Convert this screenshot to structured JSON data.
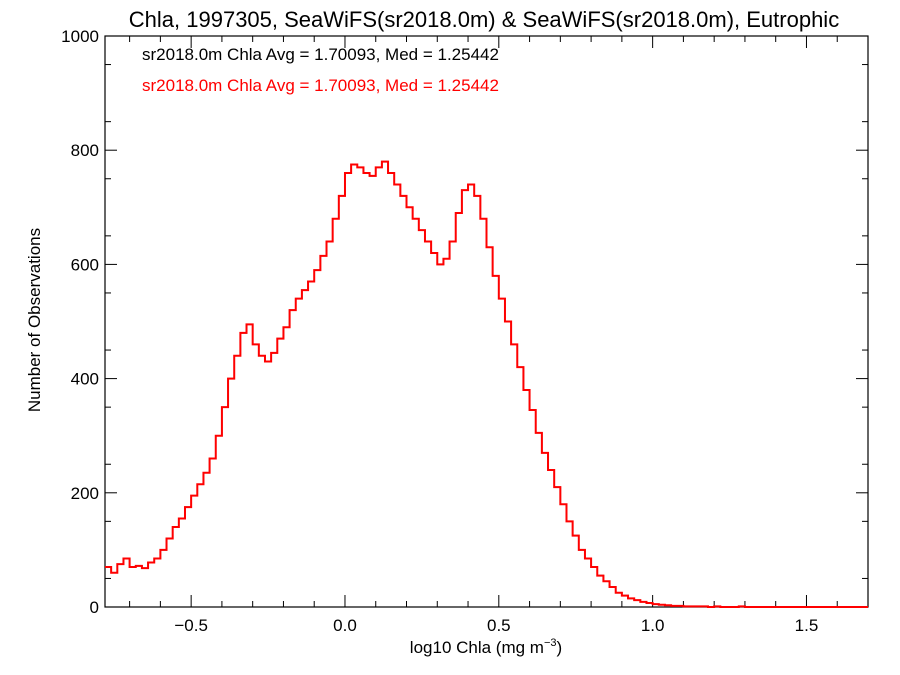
{
  "chart_data": {
    "type": "histogram",
    "title": "Chla, 1997305, SeaWiFS(sr2018.0m) & SeaWiFS(sr2018.0m), Eutrophic",
    "xlabel_main": "log10 Chla (mg m",
    "xlabel_sup": "−3",
    "xlabel_end": ")",
    "ylabel": "Number of Observations",
    "xlim": [
      -0.78,
      1.7
    ],
    "ylim": [
      0,
      1000
    ],
    "xticks": [
      -0.5,
      0.0,
      0.5,
      1.0,
      1.5
    ],
    "xtick_labels": [
      "−0.5",
      "0.0",
      "0.5",
      "1.0",
      "1.5"
    ],
    "yticks": [
      0,
      200,
      400,
      600,
      800,
      1000
    ],
    "ytick_labels": [
      "0",
      "200",
      "400",
      "600",
      "800",
      "1000"
    ],
    "grid": false,
    "annotations": [
      {
        "text": "sr2018.0m Chla Avg = 1.70093, Med = 1.25442",
        "color": "#000000"
      },
      {
        "text": "sr2018.0m Chla Avg = 1.70093, Med = 1.25442",
        "color": "#ff0000"
      }
    ],
    "series": [
      {
        "color": "#000000",
        "stroke": 1.4
      },
      {
        "color": "#ff0000",
        "stroke": 2
      }
    ],
    "bins": [
      {
        "x": -0.78,
        "y": 70
      },
      {
        "x": -0.76,
        "y": 60
      },
      {
        "x": -0.74,
        "y": 75
      },
      {
        "x": -0.72,
        "y": 85
      },
      {
        "x": -0.7,
        "y": 70
      },
      {
        "x": -0.68,
        "y": 72
      },
      {
        "x": -0.66,
        "y": 68
      },
      {
        "x": -0.64,
        "y": 78
      },
      {
        "x": -0.62,
        "y": 85
      },
      {
        "x": -0.6,
        "y": 100
      },
      {
        "x": -0.58,
        "y": 120
      },
      {
        "x": -0.56,
        "y": 140
      },
      {
        "x": -0.54,
        "y": 155
      },
      {
        "x": -0.52,
        "y": 175
      },
      {
        "x": -0.5,
        "y": 195
      },
      {
        "x": -0.48,
        "y": 215
      },
      {
        "x": -0.46,
        "y": 235
      },
      {
        "x": -0.44,
        "y": 260
      },
      {
        "x": -0.42,
        "y": 300
      },
      {
        "x": -0.4,
        "y": 350
      },
      {
        "x": -0.38,
        "y": 400
      },
      {
        "x": -0.36,
        "y": 440
      },
      {
        "x": -0.34,
        "y": 480
      },
      {
        "x": -0.32,
        "y": 495
      },
      {
        "x": -0.3,
        "y": 460
      },
      {
        "x": -0.28,
        "y": 440
      },
      {
        "x": -0.26,
        "y": 430
      },
      {
        "x": -0.24,
        "y": 445
      },
      {
        "x": -0.22,
        "y": 470
      },
      {
        "x": -0.2,
        "y": 490
      },
      {
        "x": -0.18,
        "y": 520
      },
      {
        "x": -0.16,
        "y": 540
      },
      {
        "x": -0.14,
        "y": 555
      },
      {
        "x": -0.12,
        "y": 570
      },
      {
        "x": -0.1,
        "y": 590
      },
      {
        "x": -0.08,
        "y": 615
      },
      {
        "x": -0.06,
        "y": 640
      },
      {
        "x": -0.04,
        "y": 680
      },
      {
        "x": -0.02,
        "y": 720
      },
      {
        "x": 0.0,
        "y": 760
      },
      {
        "x": 0.02,
        "y": 775
      },
      {
        "x": 0.04,
        "y": 770
      },
      {
        "x": 0.06,
        "y": 760
      },
      {
        "x": 0.08,
        "y": 755
      },
      {
        "x": 0.1,
        "y": 770
      },
      {
        "x": 0.12,
        "y": 780
      },
      {
        "x": 0.14,
        "y": 760
      },
      {
        "x": 0.16,
        "y": 740
      },
      {
        "x": 0.18,
        "y": 720
      },
      {
        "x": 0.2,
        "y": 700
      },
      {
        "x": 0.22,
        "y": 680
      },
      {
        "x": 0.24,
        "y": 660
      },
      {
        "x": 0.26,
        "y": 640
      },
      {
        "x": 0.28,
        "y": 620
      },
      {
        "x": 0.3,
        "y": 600
      },
      {
        "x": 0.32,
        "y": 610
      },
      {
        "x": 0.34,
        "y": 640
      },
      {
        "x": 0.36,
        "y": 690
      },
      {
        "x": 0.38,
        "y": 730
      },
      {
        "x": 0.4,
        "y": 740
      },
      {
        "x": 0.42,
        "y": 720
      },
      {
        "x": 0.44,
        "y": 680
      },
      {
        "x": 0.46,
        "y": 630
      },
      {
        "x": 0.48,
        "y": 580
      },
      {
        "x": 0.5,
        "y": 540
      },
      {
        "x": 0.52,
        "y": 500
      },
      {
        "x": 0.54,
        "y": 460
      },
      {
        "x": 0.56,
        "y": 420
      },
      {
        "x": 0.58,
        "y": 380
      },
      {
        "x": 0.6,
        "y": 345
      },
      {
        "x": 0.62,
        "y": 305
      },
      {
        "x": 0.64,
        "y": 270
      },
      {
        "x": 0.66,
        "y": 240
      },
      {
        "x": 0.68,
        "y": 210
      },
      {
        "x": 0.7,
        "y": 180
      },
      {
        "x": 0.72,
        "y": 150
      },
      {
        "x": 0.74,
        "y": 125
      },
      {
        "x": 0.76,
        "y": 100
      },
      {
        "x": 0.78,
        "y": 85
      },
      {
        "x": 0.8,
        "y": 70
      },
      {
        "x": 0.82,
        "y": 55
      },
      {
        "x": 0.84,
        "y": 45
      },
      {
        "x": 0.86,
        "y": 35
      },
      {
        "x": 0.88,
        "y": 25
      },
      {
        "x": 0.9,
        "y": 20
      },
      {
        "x": 0.92,
        "y": 15
      },
      {
        "x": 0.94,
        "y": 12
      },
      {
        "x": 0.96,
        "y": 9
      },
      {
        "x": 0.98,
        "y": 7
      },
      {
        "x": 1.0,
        "y": 5
      },
      {
        "x": 1.02,
        "y": 4
      },
      {
        "x": 1.04,
        "y": 3
      },
      {
        "x": 1.06,
        "y": 2
      },
      {
        "x": 1.08,
        "y": 2
      },
      {
        "x": 1.1,
        "y": 1
      },
      {
        "x": 1.12,
        "y": 1
      },
      {
        "x": 1.14,
        "y": 1
      },
      {
        "x": 1.16,
        "y": 1
      },
      {
        "x": 1.18,
        "y": 0
      },
      {
        "x": 1.2,
        "y": 1
      },
      {
        "x": 1.22,
        "y": 0
      },
      {
        "x": 1.24,
        "y": 0
      },
      {
        "x": 1.26,
        "y": 0
      },
      {
        "x": 1.28,
        "y": 1
      },
      {
        "x": 1.3,
        "y": 0
      },
      {
        "x": 1.32,
        "y": 0
      },
      {
        "x": 1.34,
        "y": 0
      },
      {
        "x": 1.36,
        "y": 0
      },
      {
        "x": 1.38,
        "y": 0
      },
      {
        "x": 1.4,
        "y": 0
      },
      {
        "x": 1.42,
        "y": 0
      },
      {
        "x": 1.44,
        "y": 0
      },
      {
        "x": 1.46,
        "y": 0
      },
      {
        "x": 1.48,
        "y": 0
      },
      {
        "x": 1.5,
        "y": 0
      },
      {
        "x": 1.52,
        "y": 0
      },
      {
        "x": 1.54,
        "y": 0
      },
      {
        "x": 1.56,
        "y": 0
      },
      {
        "x": 1.58,
        "y": 0
      },
      {
        "x": 1.6,
        "y": 0
      },
      {
        "x": 1.62,
        "y": 0
      },
      {
        "x": 1.64,
        "y": 0
      },
      {
        "x": 1.66,
        "y": 0
      },
      {
        "x": 1.68,
        "y": 0
      }
    ]
  }
}
